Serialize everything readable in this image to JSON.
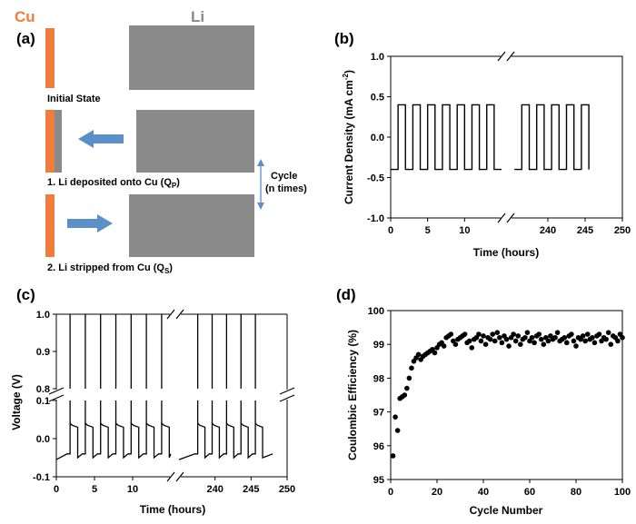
{
  "schematic": {
    "panel": "(a)",
    "cu_label": "Cu",
    "li_label": "Li",
    "initial_state": "Initial State",
    "step1_pre": "1. Li deposited onto Cu (Q",
    "step1_sub": "P",
    "step1_post": ")",
    "step2_pre": "2. Li stripped from Cu (Q",
    "step2_sub": "S",
    "step2_post": ")",
    "cycle_line1": "Cycle",
    "cycle_line2": "(n times)",
    "colors": {
      "cu": "#f07d3c",
      "li": "#8a8a8a",
      "arrow": "#5b8fc9"
    }
  },
  "chart_data": [
    {
      "panel": "(b)",
      "type": "line",
      "ylabel_main": "Current Density (mA cm",
      "ylabel_sup": "-2",
      "ylabel_end": ")",
      "xlabel": "Time (hours)",
      "ylim": [
        -1.0,
        1.0
      ],
      "yticks": [
        "1.0",
        "0.5",
        "0.0",
        "-0.5",
        "-1.0"
      ],
      "yticks_values": [
        1.0,
        0.5,
        0.0,
        -0.5,
        -1.0
      ],
      "xticks": [
        "0",
        "5",
        "10",
        "240",
        "245",
        "250"
      ],
      "segment1": {
        "x_range": [
          0,
          15
        ],
        "period_hours": 2,
        "start": 0,
        "end": 15,
        "high": 0.4,
        "low": -0.4
      },
      "segment2": {
        "x_range": [
          235,
          250
        ],
        "start": 235.5,
        "end": 246,
        "high": 0.4,
        "low": -0.4
      },
      "axis_break": true
    },
    {
      "panel": "(c)",
      "type": "line",
      "ylabel": "Voltage (V)",
      "xlabel": "Time (hours)",
      "upper_ylim": [
        0.8,
        1.0
      ],
      "lower_ylim": [
        -0.1,
        0.1
      ],
      "yticks_upper": [
        "1.0",
        "0.9",
        "0.8"
      ],
      "yticks_lower": [
        "0.1",
        "0.0",
        "-0.1"
      ],
      "xticks": [
        "0",
        "5",
        "10",
        "240",
        "245",
        "250"
      ],
      "spike_times_seg1": [
        1.8,
        3.8,
        5.8,
        7.8,
        9.8,
        11.8,
        13.8
      ],
      "spike_times_seg2": [
        237.6,
        239.6,
        241.6,
        243.6,
        245.6
      ],
      "plateau_low": -0.04,
      "plateau_high": 0.04,
      "spike_to": 1.0,
      "axis_break": true
    },
    {
      "panel": "(d)",
      "type": "scatter",
      "ylabel": "Coulombic Efficiency (%)",
      "xlabel": "Cycle Number",
      "xlim": [
        0,
        100
      ],
      "ylim": [
        95,
        100
      ],
      "xticks": [
        "0",
        "20",
        "40",
        "60",
        "80",
        "100"
      ],
      "yticks": [
        "100",
        "99",
        "98",
        "97",
        "96",
        "95"
      ],
      "x": [
        1,
        2,
        3,
        4,
        5,
        6,
        7,
        8,
        9,
        10,
        11,
        12,
        13,
        14,
        15,
        16,
        17,
        18,
        19,
        20,
        21,
        22,
        23,
        24,
        25,
        26,
        27,
        28,
        29,
        30,
        31,
        32,
        33,
        34,
        35,
        36,
        37,
        38,
        39,
        40,
        41,
        42,
        43,
        44,
        45,
        46,
        47,
        48,
        49,
        50,
        51,
        52,
        53,
        54,
        55,
        56,
        57,
        58,
        59,
        60,
        61,
        62,
        63,
        64,
        65,
        66,
        67,
        68,
        69,
        70,
        71,
        72,
        73,
        74,
        75,
        76,
        77,
        78,
        79,
        80,
        81,
        82,
        83,
        84,
        85,
        86,
        87,
        88,
        89,
        90,
        91,
        92,
        93,
        94,
        95,
        96,
        97,
        98,
        99,
        100
      ],
      "values": [
        95.7,
        96.85,
        96.45,
        97.4,
        97.45,
        97.5,
        97.7,
        98.0,
        98.3,
        98.5,
        98.6,
        98.7,
        98.55,
        98.65,
        98.7,
        98.75,
        98.8,
        98.85,
        98.75,
        98.9,
        99.0,
        99.05,
        98.95,
        99.2,
        99.25,
        99.3,
        99.1,
        99.0,
        99.15,
        99.2,
        99.25,
        99.3,
        99.05,
        99.1,
        98.9,
        99.15,
        99.2,
        99.3,
        99.1,
        99.25,
        99.0,
        99.2,
        99.15,
        99.3,
        99.1,
        99.35,
        99.2,
        99.05,
        99.25,
        99.15,
        98.95,
        99.2,
        99.3,
        99.1,
        99.25,
        99.0,
        99.15,
        99.2,
        99.35,
        99.1,
        99.2,
        99.05,
        99.25,
        99.3,
        99.15,
        99.0,
        99.2,
        99.1,
        99.25,
        99.15,
        99.2,
        99.35,
        99.1,
        99.15,
        99.2,
        99.05,
        99.25,
        99.3,
        99.1,
        98.95,
        99.2,
        99.15,
        99.25,
        99.1,
        99.3,
        99.15,
        99.2,
        99.05,
        99.25,
        99.3,
        99.1,
        99.2,
        99.15,
        99.35,
        99.0,
        99.25,
        99.2,
        99.1,
        99.3,
        99.2
      ]
    }
  ]
}
